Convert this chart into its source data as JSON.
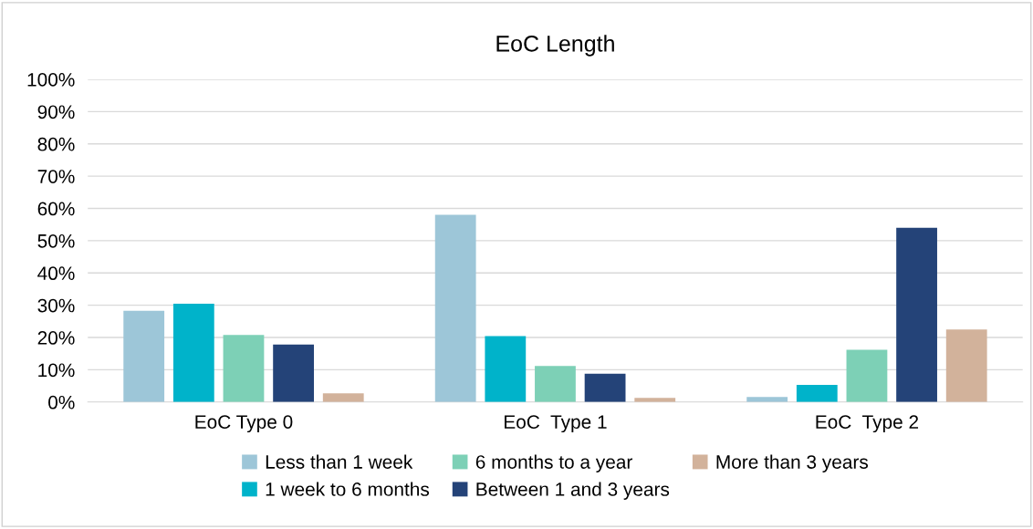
{
  "chart_data": {
    "type": "bar",
    "title": "EoC Length",
    "categories": [
      "EoC Type 0",
      "EoC  Type 1",
      "EoC  Type 2"
    ],
    "series": [
      {
        "name": "Less than 1 week",
        "color": "#9dc6d8",
        "values": [
          28.3,
          58.0,
          1.6
        ]
      },
      {
        "name": "1 week to 6 months",
        "color": "#00b3ca",
        "values": [
          30.5,
          20.4,
          5.3
        ]
      },
      {
        "name": "6 months to a year",
        "color": "#7dd0b6",
        "values": [
          20.8,
          11.2,
          16.2
        ]
      },
      {
        "name": "Between 1 and 3 years",
        "color": "#244378",
        "values": [
          17.8,
          8.8,
          54.0
        ]
      },
      {
        "name": "More than 3 years",
        "color": "#d2b29b",
        "values": [
          2.7,
          1.3,
          22.5
        ]
      }
    ],
    "ylim": [
      0,
      100
    ],
    "yticks": [
      {
        "value": 0,
        "label": "0%"
      },
      {
        "value": 10,
        "label": "10%"
      },
      {
        "value": 20,
        "label": "20%"
      },
      {
        "value": 30,
        "label": "30%"
      },
      {
        "value": 40,
        "label": "40%"
      },
      {
        "value": 50,
        "label": "50%"
      },
      {
        "value": 60,
        "label": "60%"
      },
      {
        "value": 70,
        "label": "70%"
      },
      {
        "value": 80,
        "label": "80%"
      },
      {
        "value": 90,
        "label": "90%"
      },
      {
        "value": 100,
        "label": "100%"
      }
    ],
    "grid": "y",
    "legend": "bottom"
  }
}
